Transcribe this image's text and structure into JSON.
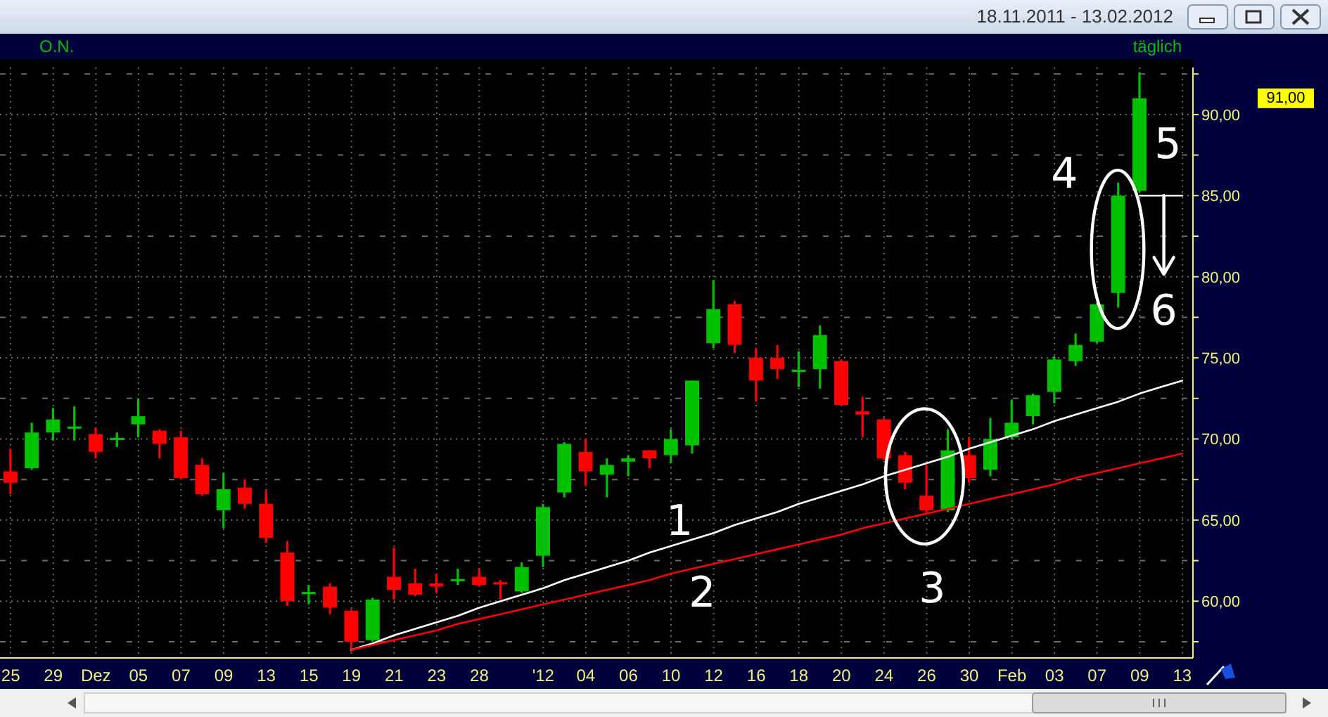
{
  "chart_data": {
    "type": "candlestick",
    "subtitle": "18.11.2011 - 13.02.2012",
    "categories": [
      "25",
      null,
      "29",
      null,
      "Dez",
      null,
      "05",
      null,
      "07",
      null,
      "09",
      null,
      "13",
      null,
      "15",
      null,
      "19",
      null,
      "21",
      null,
      "23",
      null,
      "28",
      null,
      null,
      "'12",
      null,
      "04",
      null,
      "06",
      null,
      "10",
      null,
      "12",
      null,
      "16",
      null,
      "18",
      null,
      "20",
      null,
      "24",
      null,
      "26",
      null,
      "30",
      null,
      "Feb",
      null,
      "03",
      null,
      "07",
      null,
      "09",
      null,
      "13"
    ],
    "ohlc": [
      [
        68.0,
        69.4,
        66.6,
        67.3
      ],
      [
        68.2,
        71.0,
        68.1,
        70.4
      ],
      [
        70.4,
        71.9,
        69.9,
        71.2
      ],
      [
        70.6,
        72.0,
        69.9,
        70.7
      ],
      [
        70.3,
        70.7,
        68.8,
        69.2
      ],
      [
        69.9,
        70.4,
        69.5,
        70.0
      ],
      [
        70.9,
        72.5,
        70.1,
        71.4
      ],
      [
        70.5,
        70.6,
        68.8,
        69.7
      ],
      [
        70.1,
        70.5,
        67.5,
        67.6
      ],
      [
        68.4,
        68.8,
        66.5,
        66.6
      ],
      [
        65.6,
        67.9,
        64.5,
        66.9
      ],
      [
        67.0,
        67.5,
        65.7,
        66.0
      ],
      [
        66.0,
        66.8,
        63.6,
        63.9
      ],
      [
        63.0,
        63.7,
        59.7,
        60.0
      ],
      [
        60.4,
        61.0,
        59.8,
        60.5
      ],
      [
        60.9,
        61.1,
        59.2,
        59.6
      ],
      [
        59.4,
        59.5,
        56.9,
        57.5
      ],
      [
        57.6,
        60.2,
        57.5,
        60.1
      ],
      [
        61.5,
        63.3,
        60.1,
        60.7
      ],
      [
        61.1,
        62.0,
        60.3,
        60.4
      ],
      [
        61.1,
        61.7,
        60.5,
        60.9
      ],
      [
        61.2,
        62.0,
        61.0,
        61.3
      ],
      [
        61.5,
        62.0,
        60.9,
        61.0
      ],
      [
        61.1,
        61.3,
        60.1,
        61.0
      ],
      [
        60.6,
        62.4,
        60.5,
        62.1
      ],
      [
        62.8,
        66.0,
        62.1,
        65.8
      ],
      [
        66.7,
        69.8,
        66.4,
        69.7
      ],
      [
        69.2,
        70.0,
        67.1,
        68.0
      ],
      [
        67.8,
        68.8,
        66.4,
        68.4
      ],
      [
        68.6,
        69.0,
        67.7,
        68.8
      ],
      [
        69.3,
        69.3,
        68.2,
        68.8
      ],
      [
        69.0,
        70.6,
        68.5,
        70.0
      ],
      [
        69.6,
        73.6,
        69.1,
        73.6
      ],
      [
        75.9,
        79.8,
        75.6,
        78.0
      ],
      [
        78.3,
        78.5,
        75.3,
        75.8
      ],
      [
        75.0,
        75.6,
        72.3,
        73.6
      ],
      [
        75.0,
        75.8,
        73.7,
        74.3
      ],
      [
        74.1,
        75.4,
        73.2,
        74.2
      ],
      [
        74.3,
        77.0,
        73.1,
        76.4
      ],
      [
        74.8,
        74.9,
        72.1,
        72.1
      ],
      [
        71.7,
        72.6,
        70.1,
        71.5
      ],
      [
        71.2,
        71.3,
        68.7,
        68.8
      ],
      [
        69.0,
        69.2,
        66.9,
        67.3
      ],
      [
        66.5,
        68.4,
        65.4,
        65.6
      ],
      [
        65.6,
        70.6,
        65.5,
        69.3
      ],
      [
        69.0,
        70.1,
        67.3,
        67.6
      ],
      [
        68.1,
        71.3,
        67.7,
        70.0
      ],
      [
        70.1,
        72.4,
        70.0,
        71.0
      ],
      [
        71.4,
        72.8,
        70.9,
        72.7
      ],
      [
        72.9,
        75.1,
        72.2,
        74.9
      ],
      [
        74.8,
        76.5,
        74.5,
        75.8
      ],
      [
        76.0,
        78.4,
        75.9,
        78.3
      ],
      [
        79.0,
        85.8,
        78.1,
        85.0
      ],
      [
        85.3,
        92.6,
        85.2,
        91.0
      ],
      null,
      null
    ],
    "colors": [
      "#ff0000",
      "#00c000",
      "#00c000",
      "#00c000",
      "#ff0000",
      "#00c000",
      "#00c000",
      "#ff0000",
      "#ff0000",
      "#ff0000",
      "#00c000",
      "#ff0000",
      "#ff0000",
      "#ff0000",
      "#00c000",
      "#ff0000",
      "#ff0000",
      "#00c000",
      "#ff0000",
      "#ff0000",
      "#ff0000",
      "#00c000",
      "#ff0000",
      "#ff0000",
      "#00c000",
      "#00c000",
      "#00c000",
      "#ff0000",
      "#00c000",
      "#00c000",
      "#ff0000",
      "#00c000",
      "#00c000",
      "#00c000",
      "#ff0000",
      "#ff0000",
      "#ff0000",
      "#00c000",
      "#00c000",
      "#ff0000",
      "#ff0000",
      "#ff0000",
      "#ff0000",
      "#ff0000",
      "#00c000",
      "#ff0000",
      "#00c000",
      "#00c000",
      "#00c000",
      "#00c000",
      "#00c000",
      "#00c000",
      "#00c000",
      "#00c000",
      null,
      null
    ],
    "series": [
      {
        "type": "line",
        "color": "#ffffff",
        "values": [
          null,
          null,
          null,
          null,
          null,
          null,
          null,
          null,
          null,
          null,
          null,
          null,
          null,
          null,
          null,
          null,
          57.0,
          57.4,
          57.9,
          58.3,
          58.7,
          59.1,
          59.6,
          60.0,
          60.4,
          60.8,
          61.3,
          61.7,
          62.1,
          62.5,
          63.0,
          63.4,
          63.8,
          64.2,
          64.7,
          65.1,
          65.5,
          66.0,
          66.4,
          66.8,
          67.2,
          67.7,
          68.1,
          68.5,
          68.9,
          69.4,
          69.8,
          70.2,
          70.6,
          71.1,
          71.5,
          71.9,
          72.3,
          72.8,
          73.2,
          73.6
        ]
      },
      {
        "type": "line",
        "color": "#ff0000",
        "values": [
          null,
          null,
          null,
          null,
          null,
          null,
          null,
          null,
          null,
          null,
          null,
          null,
          null,
          null,
          null,
          null,
          57.0,
          57.3,
          57.6,
          57.9,
          58.2,
          58.6,
          58.9,
          59.2,
          59.5,
          59.8,
          60.1,
          60.4,
          60.7,
          61.0,
          61.3,
          61.7,
          62.0,
          62.3,
          62.6,
          62.9,
          63.2,
          63.5,
          63.8,
          64.1,
          64.5,
          64.8,
          65.1,
          65.4,
          65.7,
          66.0,
          66.3,
          66.6,
          66.9,
          67.2,
          67.6,
          67.9,
          68.2,
          68.5,
          68.8,
          69.1
        ]
      },
      {
        "type": "line",
        "color": "#ffffff",
        "values": [
          null,
          null,
          null,
          null,
          null,
          null,
          null,
          null,
          null,
          null,
          null,
          null,
          null,
          null,
          null,
          null,
          null,
          null,
          null,
          null,
          null,
          null,
          null,
          null,
          null,
          null,
          null,
          null,
          null,
          null,
          null,
          null,
          null,
          null,
          null,
          null,
          null,
          null,
          null,
          null,
          null,
          null,
          null,
          null,
          null,
          null,
          null,
          null,
          null,
          null,
          null,
          null,
          null,
          85,
          85,
          85
        ]
      }
    ],
    "ylim": [
      56.5,
      92.9
    ],
    "yticks": [
      {
        "value": 57.5,
        "label": null
      },
      {
        "value": 60,
        "label": "60,00"
      },
      {
        "value": 62.5,
        "label": null
      },
      {
        "value": 65,
        "label": "65,00"
      },
      {
        "value": 67.5,
        "label": null
      },
      {
        "value": 70,
        "label": "70,00"
      },
      {
        "value": 72.5,
        "label": null
      },
      {
        "value": 75,
        "label": "75,00"
      },
      {
        "value": 77.5,
        "label": null
      },
      {
        "value": 80,
        "label": "80,00"
      },
      {
        "value": 82.5,
        "label": null
      },
      {
        "value": 85,
        "label": "85,00"
      },
      {
        "value": 87.5,
        "label": null
      },
      {
        "value": 90,
        "label": "90,00"
      },
      {
        "value": 92.5,
        "label": null
      }
    ],
    "grid": true,
    "annotations": [
      "O.N.",
      "täglich",
      "1",
      "2",
      "3",
      "4",
      "5",
      {
        "text": "6",
        "y": 85
      },
      "91,00"
    ]
  }
}
